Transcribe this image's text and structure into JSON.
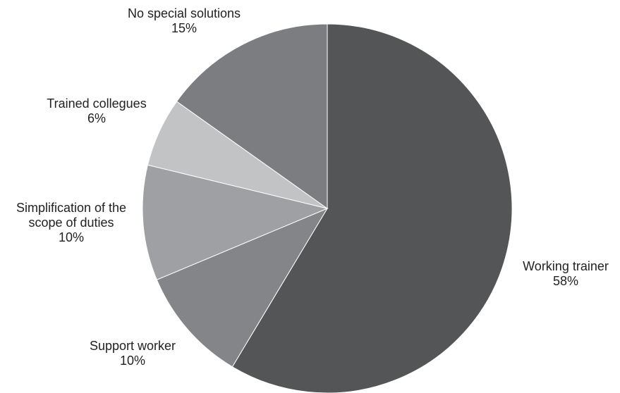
{
  "chart_data": {
    "type": "pie",
    "start": "top (12 o'clock), clockwise",
    "slices": [
      {
        "label": "Working trainer",
        "lines": [
          "Working trainer"
        ],
        "pct_label": "58%",
        "value": 58,
        "color": "#545557"
      },
      {
        "label": "Support worker",
        "lines": [
          "Support worker"
        ],
        "pct_label": "10%",
        "value": 10,
        "color": "#848588"
      },
      {
        "label": "Simplification of the scope of duties",
        "lines": [
          "Simplification of the",
          "scope of duties"
        ],
        "pct_label": "10%",
        "value": 10,
        "color": "#9fa0a3"
      },
      {
        "label": "Trained collegues",
        "lines": [
          "Trained collegues"
        ],
        "pct_label": "6%",
        "value": 6,
        "color": "#c2c3c5"
      },
      {
        "label": "No special solutions",
        "lines": [
          "No special solutions"
        ],
        "pct_label": "15%",
        "value": 15,
        "color": "#7c7d80"
      }
    ]
  }
}
